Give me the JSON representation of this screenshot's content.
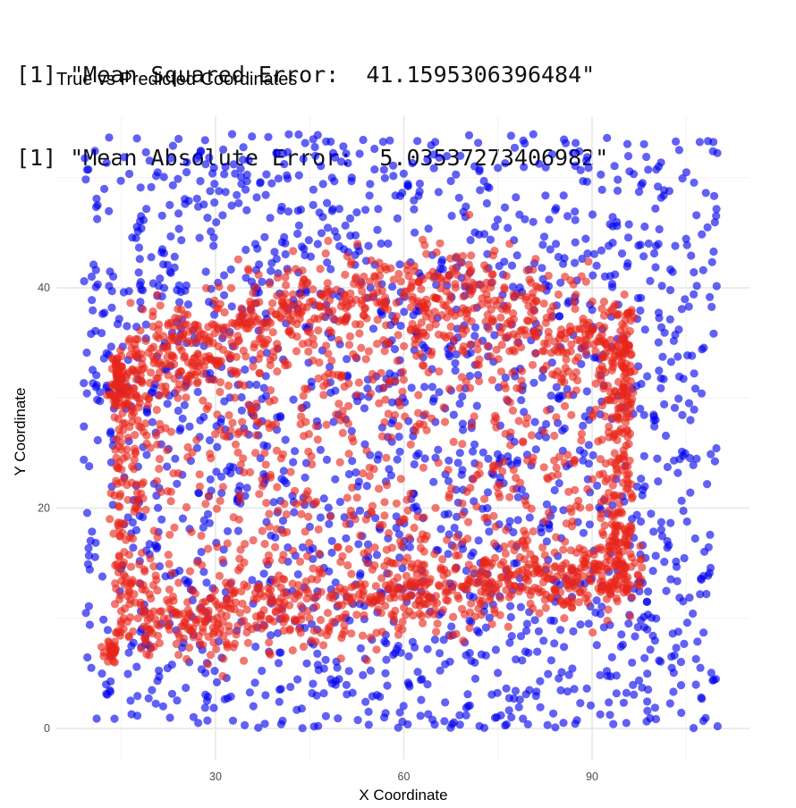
{
  "console": {
    "lines": [
      "[1] \"Mean Squared Error:  41.1595306396484\"",
      "[1] \"Mean Absolute Error:  5.03537273406982\""
    ]
  },
  "chart_data": {
    "type": "scatter",
    "title": "True vs Predicted Coordinates",
    "xlabel": "X Coordinate",
    "ylabel": "Y Coordinate",
    "xlim": [
      7,
      111
    ],
    "ylim": [
      -3,
      55
    ],
    "x_ticks": [
      30,
      60,
      90
    ],
    "y_ticks": [
      0,
      20,
      40
    ],
    "grid": true,
    "legend": "none",
    "colors": {
      "true": "#0000ee",
      "predicted": "#e8251a"
    },
    "series": [
      {
        "distribution": "uniform scatter over the full plot area",
        "color": "true",
        "x_range": [
          9,
          110
        ],
        "y_range": [
          0,
          54
        ],
        "sample_points": [
          [
            12,
            52
          ],
          [
            20,
            47
          ],
          [
            28,
            44
          ],
          [
            35,
            50
          ],
          [
            45,
            52
          ],
          [
            55,
            48
          ],
          [
            65,
            53
          ],
          [
            75,
            50
          ],
          [
            85,
            46
          ],
          [
            95,
            52
          ],
          [
            105,
            53
          ],
          [
            15,
            38
          ],
          [
            25,
            30
          ],
          [
            35,
            20
          ],
          [
            45,
            25
          ],
          [
            55,
            28
          ],
          [
            65,
            22
          ],
          [
            75,
            26
          ],
          [
            85,
            30
          ],
          [
            100,
            35
          ],
          [
            108,
            25
          ],
          [
            12,
            10
          ],
          [
            20,
            5
          ],
          [
            30,
            3
          ],
          [
            40,
            1
          ],
          [
            50,
            2
          ],
          [
            60,
            1
          ],
          [
            70,
            2
          ],
          [
            80,
            1
          ],
          [
            90,
            3
          ],
          [
            100,
            5
          ],
          [
            108,
            3
          ]
        ]
      },
      {
        "distribution": "dense band forming a loop",
        "color": "predicted",
        "x_range": [
          12,
          100
        ],
        "y_range": [
          6,
          41
        ],
        "sample_points": [
          [
            14,
            31
          ],
          [
            20,
            35
          ],
          [
            30,
            37
          ],
          [
            40,
            39
          ],
          [
            50,
            38
          ],
          [
            60,
            37
          ],
          [
            70,
            40
          ],
          [
            80,
            39
          ],
          [
            90,
            38
          ],
          [
            97,
            35
          ],
          [
            98,
            28
          ],
          [
            97,
            22
          ],
          [
            96,
            15
          ],
          [
            90,
            13
          ],
          [
            80,
            12
          ],
          [
            70,
            11
          ],
          [
            60,
            10
          ],
          [
            50,
            9.5
          ],
          [
            40,
            9
          ],
          [
            30,
            10
          ],
          [
            20,
            9
          ],
          [
            14,
            7
          ],
          [
            13,
            15
          ],
          [
            13,
            25
          ],
          [
            45,
            30
          ],
          [
            55,
            20
          ],
          [
            60,
            17
          ],
          [
            35,
            16
          ]
        ]
      }
    ]
  }
}
